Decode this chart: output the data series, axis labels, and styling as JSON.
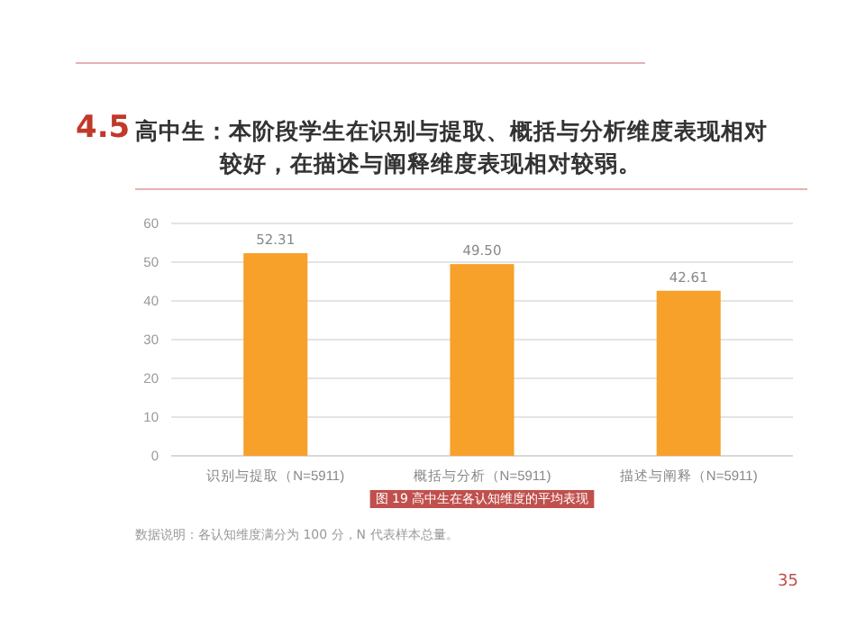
{
  "chart_data": {
    "type": "bar",
    "title": "4.5 高中生：本阶段学生在识别与提取、概括与分析维度表现相对较好，在描述与阐释维度表现相对较弱。",
    "categories": [
      "识别与提取（N=5911)",
      "概括与分析（N=5911)",
      "描述与阐释（N=5911)"
    ],
    "values": [
      52.31,
      49.5,
      42.61
    ],
    "color": "#f7a02a",
    "value_labels": [
      "52.31",
      "49.50",
      "42.61"
    ],
    "ylim": [
      0,
      60
    ],
    "yticks": [
      0,
      10,
      20,
      30,
      40,
      50,
      60
    ],
    "grid": "y",
    "annotations": [
      "图 19   高中生在各认知维度的平均表现",
      "数据说明：各认知维度满分为 100 分，N 代表样本总量。",
      "35"
    ]
  }
}
